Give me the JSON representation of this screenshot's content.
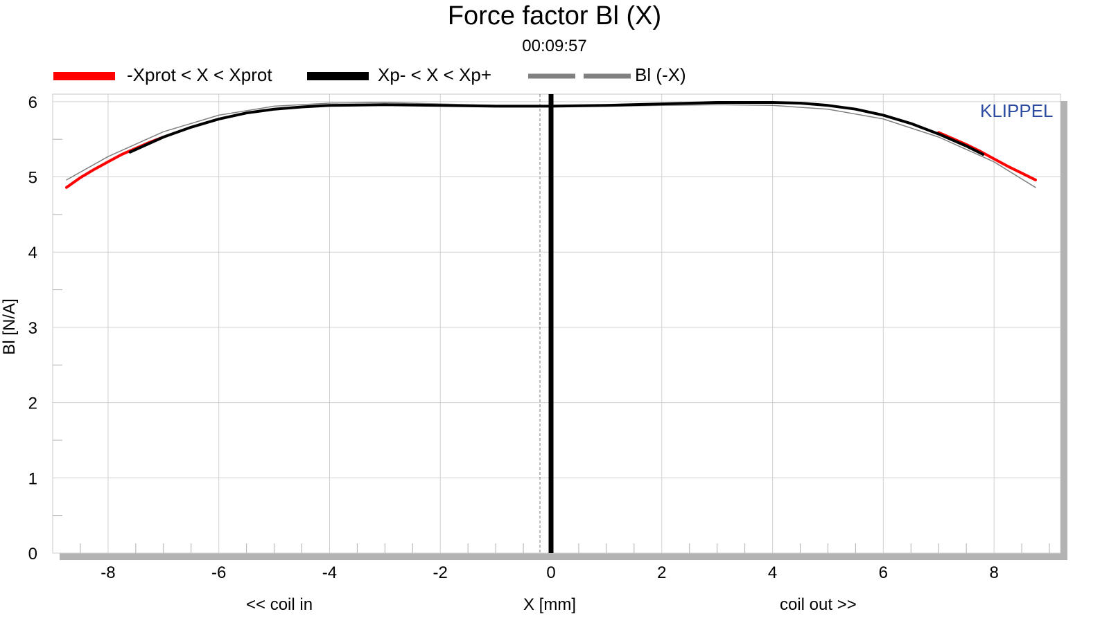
{
  "chart_data": {
    "type": "line",
    "title": "Force factor Bl (X)",
    "subtitle": "00:09:57",
    "brand": "KLIPPEL",
    "ylabel": "Bl [N/A]",
    "xlabel": "X [mm]",
    "x_annotation_left": "<< coil in",
    "x_annotation_right": "coil out >>",
    "xlim": [
      -9.0,
      9.2
    ],
    "ylim": [
      0,
      6.1
    ],
    "xticks": [
      -8,
      -6,
      -4,
      -2,
      0,
      2,
      4,
      6,
      8
    ],
    "yticks": [
      0,
      1,
      2,
      3,
      4,
      5,
      6
    ],
    "grid": true,
    "legend_position": "top",
    "markers": {
      "zero_line_x": 0,
      "dashed_line_x": -0.2
    },
    "colors": {
      "protect": "#ff0000",
      "peak": "#000000",
      "mirror": "#808080",
      "brand": "#2b4aa0"
    },
    "series": [
      {
        "name": "-Xprot < X < Xprot",
        "style": "solid-red",
        "x": [
          -8.75,
          -8.5,
          -8.25,
          -8.0,
          -7.75,
          -7.5,
          -7.25,
          -7.0,
          7.0,
          7.25,
          7.5,
          7.75,
          8.0,
          8.25,
          8.5,
          8.75
        ],
        "y": [
          4.86,
          4.99,
          5.1,
          5.2,
          5.3,
          5.38,
          5.46,
          5.53,
          5.59,
          5.51,
          5.43,
          5.34,
          5.24,
          5.14,
          5.05,
          4.96
        ]
      },
      {
        "name": "Xp- < X < Xp+",
        "style": "solid-black",
        "x": [
          -7.6,
          -7.0,
          -6.5,
          -6.0,
          -5.5,
          -5.0,
          -4.5,
          -4.0,
          -3.0,
          -2.0,
          -1.0,
          0.0,
          1.0,
          2.0,
          3.0,
          4.0,
          4.5,
          5.0,
          5.5,
          6.0,
          6.5,
          7.0,
          7.5,
          7.8
        ],
        "y": [
          5.33,
          5.53,
          5.66,
          5.77,
          5.85,
          5.9,
          5.93,
          5.95,
          5.96,
          5.95,
          5.94,
          5.94,
          5.95,
          5.97,
          5.99,
          5.99,
          5.98,
          5.95,
          5.9,
          5.82,
          5.71,
          5.57,
          5.41,
          5.3
        ]
      },
      {
        "name": "Bl (-X)",
        "style": "thin-gray",
        "x": [
          -8.75,
          -8.0,
          -7.0,
          -6.0,
          -5.0,
          -4.0,
          -3.0,
          -2.0,
          -1.0,
          0.0,
          1.0,
          2.0,
          3.0,
          4.0,
          5.0,
          6.0,
          7.0,
          8.0,
          8.75
        ],
        "y": [
          4.96,
          5.27,
          5.6,
          5.82,
          5.94,
          5.98,
          5.99,
          5.97,
          5.95,
          5.94,
          5.94,
          5.95,
          5.96,
          5.95,
          5.9,
          5.77,
          5.53,
          5.2,
          4.86
        ]
      }
    ]
  }
}
